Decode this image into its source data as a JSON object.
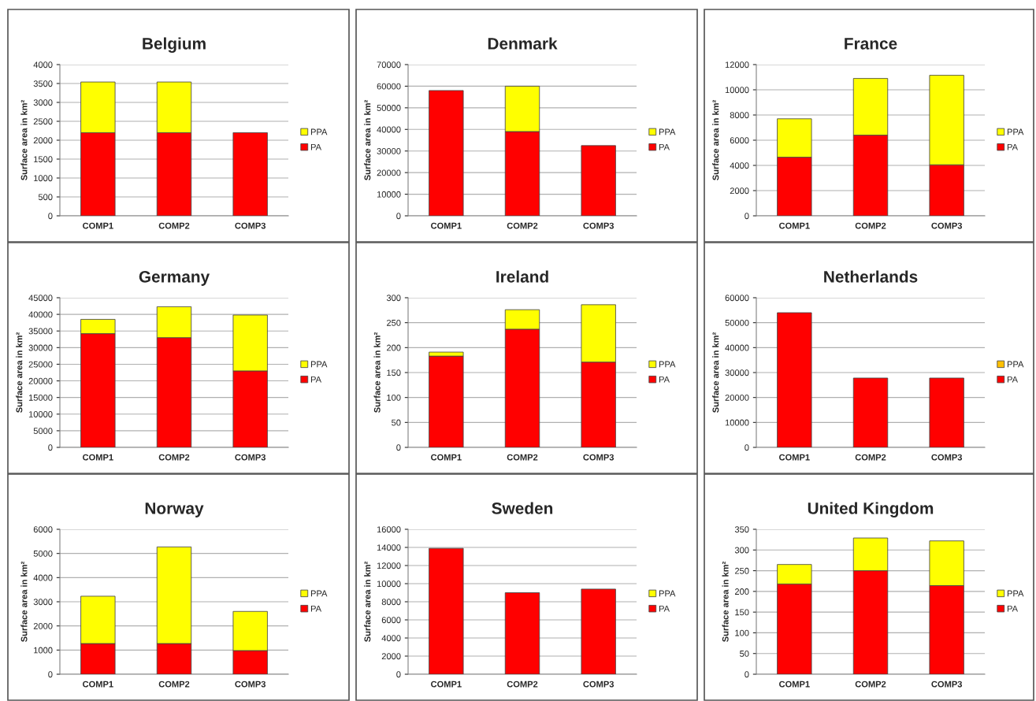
{
  "chart_data": [
    {
      "type": "bar",
      "title": "Belgium",
      "ylabel": "Surface area in km²",
      "categories": [
        "COMP1",
        "COMP2",
        "COMP3"
      ],
      "stacked": true,
      "ylim": [
        0,
        4000
      ],
      "yticks": [
        0,
        500,
        1000,
        1500,
        2000,
        2500,
        3000,
        3500,
        4000
      ],
      "grid": "y",
      "legend": "right",
      "series": [
        {
          "name": "PA",
          "color": "#ff0000",
          "values": [
            2200,
            2200,
            2200
          ]
        },
        {
          "name": "PPA",
          "color": "#ffff00",
          "values": [
            1340,
            1340,
            null
          ]
        }
      ]
    },
    {
      "type": "bar",
      "title": "Denmark",
      "ylabel": "Surface area in km²",
      "categories": [
        "COMP1",
        "COMP2",
        "COMP3"
      ],
      "stacked": true,
      "ylim": [
        0,
        70000
      ],
      "yticks": [
        0,
        10000,
        20000,
        30000,
        40000,
        50000,
        60000,
        70000
      ],
      "grid": "y",
      "legend": "right",
      "series": [
        {
          "name": "PA",
          "color": "#ff0000",
          "values": [
            58000,
            39000,
            32500
          ]
        },
        {
          "name": "PPA",
          "color": "#ffff00",
          "values": [
            null,
            21000,
            null
          ]
        }
      ]
    },
    {
      "type": "bar",
      "title": "France",
      "ylabel": "Surface area in km²",
      "categories": [
        "COMP1",
        "COMP2",
        "COMP3"
      ],
      "stacked": true,
      "ylim": [
        0,
        12000
      ],
      "yticks": [
        0,
        2000,
        4000,
        6000,
        8000,
        10000,
        12000
      ],
      "grid": "y",
      "legend": "right",
      "series": [
        {
          "name": "PA",
          "color": "#ff0000",
          "values": [
            4650,
            6400,
            4050
          ]
        },
        {
          "name": "PPA",
          "color": "#ffff00",
          "values": [
            3050,
            4500,
            7100
          ]
        }
      ]
    },
    {
      "type": "bar",
      "title": "Germany",
      "ylabel": "Surface area in km²",
      "categories": [
        "COMP1",
        "COMP2",
        "COMP3"
      ],
      "stacked": true,
      "ylim": [
        0,
        45000
      ],
      "yticks": [
        0,
        5000,
        10000,
        15000,
        20000,
        25000,
        30000,
        35000,
        40000,
        45000
      ],
      "grid": "y",
      "legend": "right",
      "series": [
        {
          "name": "PA",
          "color": "#ff0000",
          "values": [
            34200,
            33000,
            23000
          ]
        },
        {
          "name": "PPA",
          "color": "#ffff00",
          "values": [
            4300,
            9300,
            16800
          ]
        }
      ]
    },
    {
      "type": "bar",
      "title": "Ireland",
      "ylabel": "Surface area in km²",
      "categories": [
        "COMP1",
        "COMP2",
        "COMP3"
      ],
      "stacked": true,
      "ylim": [
        0,
        300
      ],
      "yticks": [
        0,
        50,
        100,
        150,
        200,
        250,
        300
      ],
      "grid": "y",
      "legend": "right",
      "series": [
        {
          "name": "PA",
          "color": "#ff0000",
          "values": [
            183,
            237,
            171
          ]
        },
        {
          "name": "PPA",
          "color": "#ffff00",
          "values": [
            8,
            39,
            115
          ]
        }
      ]
    },
    {
      "type": "bar",
      "title": "Netherlands",
      "ylabel": "Surface area in km²",
      "categories": [
        "COMP1",
        "COMP2",
        "COMP3"
      ],
      "stacked": true,
      "ylim": [
        0,
        60000
      ],
      "yticks": [
        0,
        10000,
        20000,
        30000,
        40000,
        50000,
        60000
      ],
      "grid": "y",
      "legend": "right",
      "series": [
        {
          "name": "PA",
          "color": "#ff0000",
          "values": [
            54000,
            27800,
            27800
          ]
        },
        {
          "name": "PPA",
          "color": "#ffc000",
          "values": [
            null,
            null,
            null
          ]
        }
      ]
    },
    {
      "type": "bar",
      "title": "Norway",
      "ylabel": "Surface area in km²",
      "categories": [
        "COMP1",
        "COMP2",
        "COMP3"
      ],
      "stacked": true,
      "ylim": [
        0,
        6000
      ],
      "yticks": [
        0,
        1000,
        2000,
        3000,
        4000,
        5000,
        6000
      ],
      "grid": "y",
      "legend": "right",
      "series": [
        {
          "name": "PA",
          "color": "#ff0000",
          "values": [
            1270,
            1270,
            980
          ]
        },
        {
          "name": "PPA",
          "color": "#ffff00",
          "values": [
            1960,
            4000,
            1620
          ]
        }
      ]
    },
    {
      "type": "bar",
      "title": "Sweden",
      "ylabel": "Surface area in km²",
      "categories": [
        "COMP1",
        "COMP2",
        "COMP3"
      ],
      "stacked": true,
      "ylim": [
        0,
        16000
      ],
      "yticks": [
        0,
        2000,
        4000,
        6000,
        8000,
        10000,
        12000,
        14000,
        16000
      ],
      "grid": "y",
      "legend": "right",
      "series": [
        {
          "name": "PA",
          "color": "#ff0000",
          "values": [
            13900,
            9000,
            9400
          ]
        },
        {
          "name": "PPA",
          "color": "#ffff00",
          "values": [
            null,
            null,
            null
          ]
        }
      ]
    },
    {
      "type": "bar",
      "title": "United Kingdom",
      "ylabel": "Surface area in km²",
      "categories": [
        "COMP1",
        "COMP2",
        "COMP3"
      ],
      "stacked": true,
      "ylim": [
        0,
        350
      ],
      "yticks": [
        0,
        50,
        100,
        150,
        200,
        250,
        300,
        350
      ],
      "grid": "y",
      "legend": "right",
      "series": [
        {
          "name": "PA",
          "color": "#ff0000",
          "values": [
            218,
            250,
            214
          ]
        },
        {
          "name": "PPA",
          "color": "#ffff00",
          "values": [
            47,
            79,
            108
          ]
        }
      ]
    }
  ]
}
